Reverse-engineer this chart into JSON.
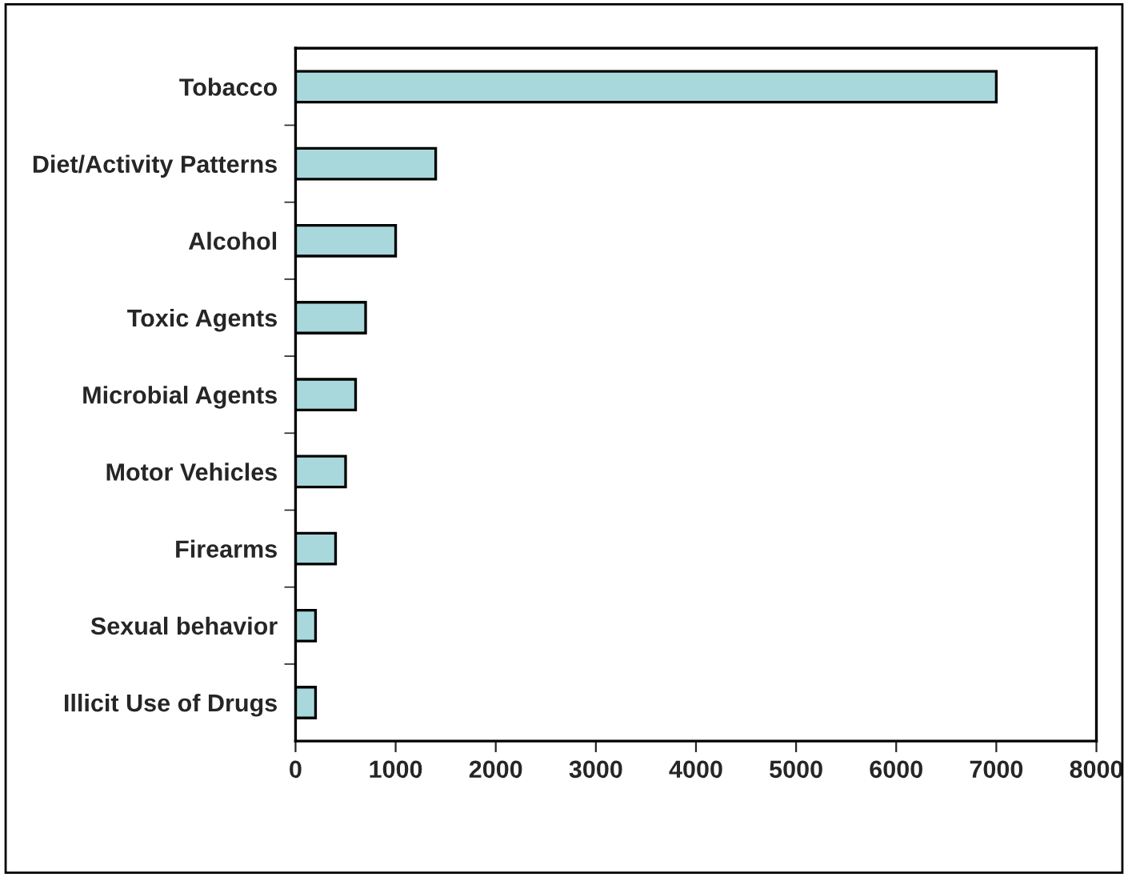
{
  "chart_data": {
    "type": "bar",
    "orientation": "horizontal",
    "categories": [
      "Tobacco",
      "Diet/Activity Patterns",
      "Alcohol",
      "Toxic Agents",
      "Microbial Agents",
      "Motor Vehicles",
      "Firearms",
      "Sexual behavior",
      "Illicit Use of Drugs"
    ],
    "values": [
      7000,
      1400,
      1000,
      700,
      600,
      500,
      400,
      200,
      200
    ],
    "color": "#a8d8dc",
    "xlim": [
      0,
      8000
    ],
    "xticks": [
      0,
      1000,
      2000,
      3000,
      4000,
      5000,
      6000,
      7000,
      8000
    ],
    "grid": false
  }
}
